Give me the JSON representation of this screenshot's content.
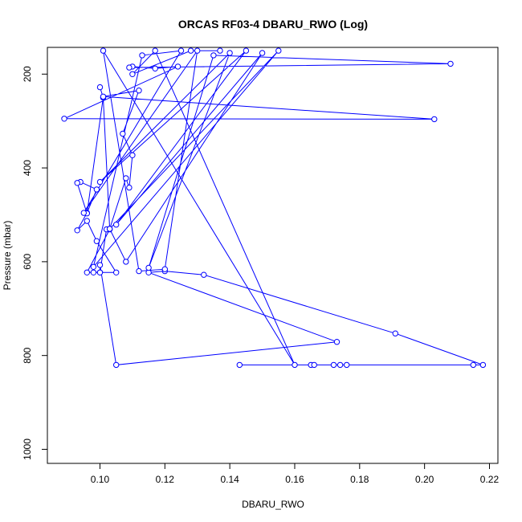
{
  "chart_data": {
    "type": "line",
    "title": "ORCAS RF03-4 DBARU_RWO (Log)",
    "xlabel": "DBARU_RWO",
    "ylabel": "Pressure (mbar)",
    "xlim": [
      0.0838,
      0.2226
    ],
    "ylim": [
      1030,
      143
    ],
    "y_reversed": true,
    "grid": false,
    "legend": "none",
    "x_ticks": [
      0.1,
      0.12,
      0.14,
      0.16,
      0.18,
      0.2,
      0.22
    ],
    "x_tick_labels": [
      "0.10",
      "0.12",
      "0.14",
      "0.16",
      "0.18",
      "0.20",
      "0.22"
    ],
    "y_ticks": [
      200,
      400,
      600,
      800,
      1000
    ],
    "y_tick_labels": [
      "200",
      "400",
      "600",
      "800",
      "1000"
    ],
    "color": "#0000ff",
    "series": [
      {
        "x": [
          0.143,
          0.165,
          0.166,
          0.172,
          0.174,
          0.176,
          0.215,
          0.218,
          0.191,
          0.132,
          0.12,
          0.115,
          0.173,
          0.105,
          0.1,
          0.1,
          0.098,
          0.096,
          0.103,
          0.102,
          0.1,
          0.105,
          0.099,
          0.096,
          0.093,
          0.096,
          0.099,
          0.094,
          0.093,
          0.096,
          0.101,
          0.1,
          0.101,
          0.103,
          0.108,
          0.109,
          0.11,
          0.107,
          0.112,
          0.101,
          0.203,
          0.089,
          0.124,
          0.117,
          0.11,
          0.109,
          0.208,
          0.135,
          0.115,
          0.14,
          0.1,
          0.145,
          0.105,
          0.15,
          0.108,
          0.103,
          0.155,
          0.098,
          0.113,
          0.125,
          0.095,
          0.13,
          0.12,
          0.112,
          0.101,
          0.16,
          0.117,
          0.11,
          0.128,
          0.137
        ],
        "y": [
          820,
          820,
          820,
          820,
          820,
          820,
          820,
          820,
          753,
          628,
          620,
          623,
          771,
          820,
          607,
          623,
          623,
          623,
          531,
          531,
          623,
          623,
          556,
          513,
          533,
          496,
          446,
          430,
          432,
          497,
          250,
          228,
          250,
          530,
          422,
          442,
          373,
          327,
          235,
          248,
          296,
          295,
          184,
          188,
          184,
          186,
          178,
          160,
          613,
          155,
          430,
          150,
          521,
          155,
          600,
          530,
          150,
          611,
          160,
          150,
          496,
          150,
          616,
          620,
          150,
          820,
          150,
          200,
          150,
          150
        ]
      }
    ]
  }
}
